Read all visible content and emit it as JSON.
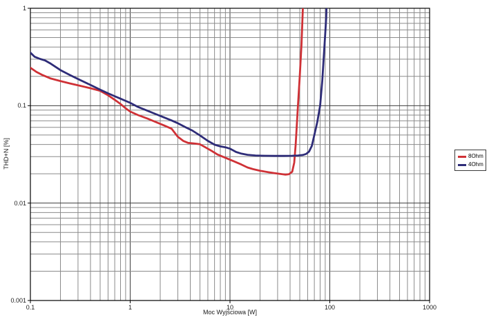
{
  "page": {
    "background": "#ffffff"
  },
  "chart_data": {
    "type": "line",
    "title": "",
    "xlabel": "Moc Wyjściowa [W]",
    "ylabel": "THD+N [%]",
    "x_scale": "log",
    "y_scale": "log",
    "xlim": [
      0.1,
      1000
    ],
    "ylim": [
      0.001,
      1
    ],
    "x_tick_values": [
      0.1,
      1,
      10,
      100,
      1000
    ],
    "x_tick_labels": [
      "0.1",
      "1",
      "10",
      "100",
      "1000"
    ],
    "y_tick_values": [
      1,
      0.1,
      0.01,
      0.001
    ],
    "y_tick_labels": [
      "1",
      "0.1",
      "0.01",
      "0.001"
    ],
    "grid": "log minor gridlines on, both axes",
    "legend_position": "right, outside plot",
    "colors": {
      "grid_minor": "#8a8a8a",
      "grid_major": "#3c3c3c",
      "plot_border": "#000000",
      "series_8ohm": "#cf3136",
      "series_4ohm": "#2e2c78"
    },
    "series": [
      {
        "name": "8Ohm",
        "color": "#cf3136",
        "points": [
          [
            0.1,
            0.245
          ],
          [
            0.115,
            0.222
          ],
          [
            0.13,
            0.208
          ],
          [
            0.16,
            0.19
          ],
          [
            0.2,
            0.179
          ],
          [
            0.25,
            0.169
          ],
          [
            0.3,
            0.162
          ],
          [
            0.4,
            0.151
          ],
          [
            0.5,
            0.142
          ],
          [
            0.6,
            0.128
          ],
          [
            0.7,
            0.115
          ],
          [
            0.8,
            0.104
          ],
          [
            0.9,
            0.094
          ],
          [
            1.0,
            0.087
          ],
          [
            1.2,
            0.08
          ],
          [
            1.5,
            0.0735
          ],
          [
            1.8,
            0.068
          ],
          [
            2.2,
            0.0625
          ],
          [
            2.6,
            0.058
          ],
          [
            3.0,
            0.048
          ],
          [
            3.4,
            0.0435
          ],
          [
            3.8,
            0.0415
          ],
          [
            4.5,
            0.0408
          ],
          [
            5.0,
            0.0402
          ],
          [
            5.5,
            0.038
          ],
          [
            6.5,
            0.0345
          ],
          [
            7.5,
            0.0315
          ],
          [
            9,
            0.0292
          ],
          [
            11,
            0.0268
          ],
          [
            13,
            0.0249
          ],
          [
            15,
            0.0232
          ],
          [
            17,
            0.0223
          ],
          [
            20,
            0.0215
          ],
          [
            24,
            0.0208
          ],
          [
            28,
            0.0203
          ],
          [
            32,
            0.0199
          ],
          [
            36,
            0.0196
          ],
          [
            39,
            0.0198
          ],
          [
            42,
            0.021
          ],
          [
            44,
            0.026
          ],
          [
            45.5,
            0.04
          ],
          [
            47,
            0.07
          ],
          [
            48,
            0.1
          ],
          [
            50,
            0.2
          ],
          [
            52,
            0.42
          ],
          [
            54,
            1.15
          ]
        ]
      },
      {
        "name": "4Ohm",
        "color": "#2e2c78",
        "points": [
          [
            0.1,
            0.35
          ],
          [
            0.11,
            0.318
          ],
          [
            0.125,
            0.302
          ],
          [
            0.14,
            0.292
          ],
          [
            0.16,
            0.27
          ],
          [
            0.2,
            0.232
          ],
          [
            0.25,
            0.206
          ],
          [
            0.3,
            0.188
          ],
          [
            0.4,
            0.163
          ],
          [
            0.5,
            0.146
          ],
          [
            0.6,
            0.134
          ],
          [
            0.7,
            0.125
          ],
          [
            0.8,
            0.118
          ],
          [
            0.9,
            0.112
          ],
          [
            1.0,
            0.107
          ],
          [
            1.2,
            0.097
          ],
          [
            1.5,
            0.0885
          ],
          [
            1.8,
            0.082
          ],
          [
            2.2,
            0.0755
          ],
          [
            2.6,
            0.0705
          ],
          [
            3.0,
            0.066
          ],
          [
            3.6,
            0.06
          ],
          [
            4.2,
            0.0555
          ],
          [
            5.0,
            0.0495
          ],
          [
            6.0,
            0.0435
          ],
          [
            7.0,
            0.0398
          ],
          [
            8.0,
            0.0382
          ],
          [
            9.0,
            0.0374
          ],
          [
            10,
            0.0362
          ],
          [
            11.5,
            0.0335
          ],
          [
            13,
            0.0322
          ],
          [
            15,
            0.0313
          ],
          [
            18,
            0.0308
          ],
          [
            22,
            0.0306
          ],
          [
            28,
            0.0305
          ],
          [
            35,
            0.0305
          ],
          [
            42,
            0.0306
          ],
          [
            48,
            0.0308
          ],
          [
            54,
            0.0312
          ],
          [
            58,
            0.032
          ],
          [
            62,
            0.0338
          ],
          [
            66,
            0.0385
          ],
          [
            70,
            0.05
          ],
          [
            75,
            0.068
          ],
          [
            80,
            0.1
          ],
          [
            84,
            0.18
          ],
          [
            87,
            0.32
          ],
          [
            90,
            0.55
          ],
          [
            92,
            0.8
          ],
          [
            93,
            1.15
          ]
        ]
      }
    ]
  },
  "legend": {
    "items": [
      {
        "label": "8Ohm",
        "color": "#cf3136"
      },
      {
        "label": "4Ohm",
        "color": "#2e2c78"
      }
    ]
  }
}
